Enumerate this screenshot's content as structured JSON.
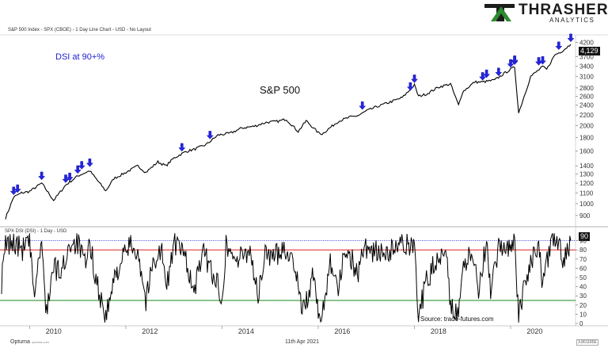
{
  "header": {
    "main_title": "S&P 500 Index - SPX (CBOE) - 1 Day Line Chart - USD - No Layout",
    "sub_title": "SPX DSI (DSI) - 1 Day - USD",
    "logo_main": "THRASHER",
    "logo_sub": "ANALYTICS"
  },
  "footer": {
    "date": "11th Apr 2021",
    "brand": "Optuma",
    "site": "optuma.com",
    "right_value": "3.861185E"
  },
  "chart_data": [
    {
      "type": "line",
      "name": "S&P 500",
      "annotations": [
        "DSI at 90+%",
        "S&P 500"
      ],
      "last_value_label": "4,129",
      "y_scale": "log",
      "ylim": [
        850,
        4300
      ],
      "y_ticks": [
        "4200",
        "3700",
        "3400",
        "3100",
        "2800",
        "2600",
        "2400",
        "2200",
        "2000",
        "1800",
        "1600",
        "1400",
        "1300",
        "1200",
        "1100",
        "1000",
        "900"
      ],
      "x": [
        "2009-07",
        "2009-09",
        "2009-11",
        "2010-01",
        "2010-04",
        "2010-07",
        "2010-10",
        "2011-01",
        "2011-04",
        "2011-08",
        "2011-10",
        "2012-01",
        "2012-04",
        "2012-06",
        "2012-09",
        "2012-11",
        "2013-01",
        "2013-04",
        "2013-06",
        "2013-09",
        "2013-12",
        "2014-03",
        "2014-06",
        "2014-09",
        "2014-12",
        "2015-03",
        "2015-05",
        "2015-08",
        "2015-10",
        "2016-01",
        "2016-02",
        "2016-06",
        "2016-09",
        "2016-11",
        "2017-01",
        "2017-04",
        "2017-07",
        "2017-10",
        "2018-01",
        "2018-02",
        "2018-04",
        "2018-07",
        "2018-10",
        "2018-12",
        "2019-01",
        "2019-04",
        "2019-06",
        "2019-09",
        "2019-12",
        "2020-02",
        "2020-03",
        "2020-06",
        "2020-09",
        "2020-10",
        "2020-12",
        "2021-02",
        "2021-04"
      ],
      "values": [
        880,
        1060,
        1100,
        1115,
        1200,
        1030,
        1180,
        1280,
        1340,
        1120,
        1250,
        1320,
        1400,
        1320,
        1450,
        1400,
        1500,
        1590,
        1620,
        1690,
        1840,
        1870,
        1960,
        1990,
        2060,
        2080,
        2120,
        1900,
        2090,
        1880,
        1860,
        2080,
        2160,
        2190,
        2280,
        2380,
        2470,
        2570,
        2870,
        2600,
        2650,
        2820,
        2900,
        2400,
        2700,
        2950,
        2950,
        3000,
        3230,
        3370,
        2240,
        3100,
        3380,
        3300,
        3750,
        3900,
        4129
      ],
      "signals": [
        {
          "x": "2009-09",
          "y": 1060
        },
        {
          "x": "2009-10",
          "y": 1080
        },
        {
          "x": "2010-04",
          "y": 1210
        },
        {
          "x": "2010-10",
          "y": 1180
        },
        {
          "x": "2010-11",
          "y": 1200
        },
        {
          "x": "2011-01",
          "y": 1280
        },
        {
          "x": "2011-02",
          "y": 1330
        },
        {
          "x": "2011-04",
          "y": 1360
        },
        {
          "x": "2013-03",
          "y": 1560
        },
        {
          "x": "2013-10",
          "y": 1740
        },
        {
          "x": "2016-12",
          "y": 2260
        },
        {
          "x": "2017-12",
          "y": 2680
        },
        {
          "x": "2018-01",
          "y": 2870
        },
        {
          "x": "2019-06",
          "y": 2930
        },
        {
          "x": "2019-07",
          "y": 3000
        },
        {
          "x": "2019-10",
          "y": 3050
        },
        {
          "x": "2020-01",
          "y": 3290
        },
        {
          "x": "2020-02",
          "y": 3370
        },
        {
          "x": "2020-02",
          "y": 3400
        },
        {
          "x": "2020-08",
          "y": 3350
        },
        {
          "x": "2020-09",
          "y": 3380
        },
        {
          "x": "2021-01",
          "y": 3850
        },
        {
          "x": "2021-04",
          "y": 4129
        }
      ]
    },
    {
      "type": "line",
      "name": "SPX DSI",
      "annotation": "Source: trade-futures.com",
      "last_value_label": "90",
      "ylim": [
        0,
        100
      ],
      "y_ticks": [
        "90",
        "80",
        "70",
        "60",
        "50",
        "40",
        "30",
        "20",
        "10",
        "0"
      ],
      "x_ticks": [
        "2010",
        "2012",
        "2014",
        "2016",
        "2018",
        "2020"
      ],
      "reference_lines": [
        {
          "value": 90,
          "color": "#2b2bd8",
          "style": "dotted"
        },
        {
          "value": 80,
          "color": "#e02020",
          "style": "solid"
        },
        {
          "value": 25,
          "color": "#1a8a1a",
          "style": "solid"
        }
      ],
      "x": [
        "2009-06",
        "2009-07",
        "2009-09",
        "2009-11",
        "2010-01",
        "2010-02",
        "2010-04",
        "2010-05",
        "2010-07",
        "2010-09",
        "2010-11",
        "2011-01",
        "2011-03",
        "2011-04",
        "2011-06",
        "2011-08",
        "2011-10",
        "2011-11",
        "2012-02",
        "2012-04",
        "2012-06",
        "2012-08",
        "2012-10",
        "2012-11",
        "2013-01",
        "2013-04",
        "2013-06",
        "2013-08",
        "2013-10",
        "2014-01",
        "2014-02",
        "2014-05",
        "2014-08",
        "2014-10",
        "2014-12",
        "2015-02",
        "2015-04",
        "2015-06",
        "2015-08",
        "2015-09",
        "2015-12",
        "2016-01",
        "2016-02",
        "2016-04",
        "2016-06",
        "2016-08",
        "2016-11",
        "2016-12",
        "2017-03",
        "2017-06",
        "2017-09",
        "2017-12",
        "2018-01",
        "2018-02",
        "2018-04",
        "2018-06",
        "2018-09",
        "2018-10",
        "2018-12",
        "2019-01",
        "2019-03",
        "2019-05",
        "2019-07",
        "2019-08",
        "2019-10",
        "2019-12",
        "2020-01",
        "2020-02",
        "2020-03",
        "2020-04",
        "2020-06",
        "2020-08",
        "2020-09",
        "2020-11",
        "2021-01",
        "2021-02",
        "2021-04"
      ],
      "values": [
        45,
        85,
        88,
        80,
        88,
        30,
        90,
        12,
        60,
        55,
        88,
        88,
        60,
        87,
        40,
        5,
        45,
        60,
        85,
        80,
        25,
        70,
        80,
        35,
        88,
        72,
        30,
        78,
        62,
        30,
        85,
        68,
        82,
        28,
        80,
        70,
        84,
        75,
        50,
        8,
        55,
        5,
        10,
        70,
        40,
        84,
        52,
        85,
        78,
        75,
        84,
        85,
        92,
        8,
        45,
        65,
        84,
        20,
        5,
        55,
        78,
        40,
        88,
        30,
        80,
        84,
        88,
        90,
        3,
        30,
        70,
        84,
        40,
        86,
        88,
        70,
        90
      ]
    }
  ]
}
